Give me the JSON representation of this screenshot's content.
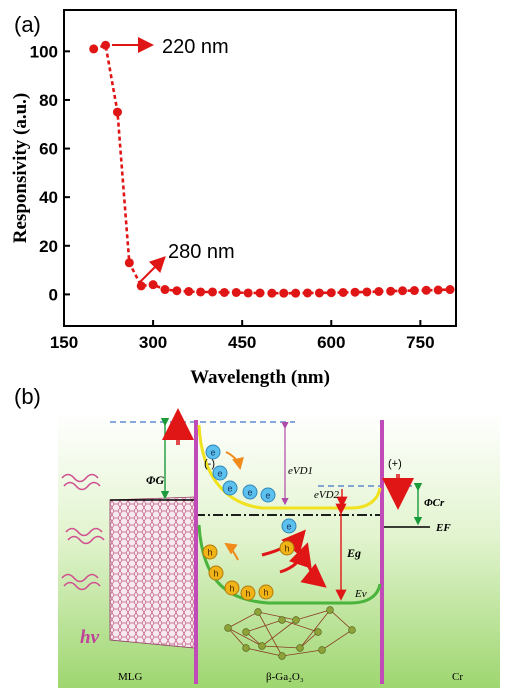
{
  "panel_labels": {
    "a": "(a)",
    "b": "(b)"
  },
  "colors": {
    "data": "#e01515",
    "axis": "#000000",
    "yellow_band": "#f1e21f",
    "green_band": "#4ab43c",
    "magenta_line": "#c04ab8",
    "dashed_blue": "#5f8bd0",
    "electron": "#5cc1ee",
    "hole": "#f0b418"
  },
  "chart_data": {
    "type": "scatter",
    "xlabel": "Wavelength (nm)",
    "ylabel": "Responsivity (a.u.)",
    "xlim": [
      150,
      810
    ],
    "ylim": [
      -13,
      117
    ],
    "xticks": [
      150,
      300,
      450,
      600,
      750
    ],
    "yticks": [
      0,
      20,
      40,
      60,
      80,
      100
    ],
    "grid": false,
    "series": [
      {
        "x": [
          200,
          220,
          240,
          260,
          280,
          300,
          320,
          340,
          360,
          380,
          400,
          420,
          440,
          460,
          480,
          500,
          520,
          540,
          560,
          580,
          600,
          620,
          640,
          660,
          680,
          700,
          720,
          740,
          760,
          780,
          800
        ],
        "y": [
          101,
          102.5,
          75,
          13,
          3.5,
          4,
          2,
          1.5,
          1.2,
          1,
          1,
          0.8,
          0.8,
          0.6,
          0.6,
          0.5,
          0.5,
          0.5,
          0.6,
          0.6,
          0.7,
          0.8,
          0.9,
          1,
          1.2,
          1.3,
          1.5,
          1.6,
          1.7,
          1.8,
          2
        ]
      }
    ],
    "annotations": [
      {
        "text": "220 nm",
        "x": 220,
        "y": 102.5
      },
      {
        "text": "280 nm",
        "x": 280,
        "y": 3.5
      }
    ]
  },
  "diagram": {
    "regions": {
      "left": "MLG",
      "middle": "β-Ga₂O₃",
      "right": "Cr"
    },
    "phi_g": "ΦG",
    "phi_cr": "ΦCr",
    "ev_d1": "eVD1",
    "ev_d2": "eVD2",
    "eg": "Eg",
    "ef": "EF",
    "ev": "Ev",
    "minus": "(-)",
    "plus": "(+)",
    "hv": "hv",
    "electron": "e",
    "hole": "h"
  }
}
